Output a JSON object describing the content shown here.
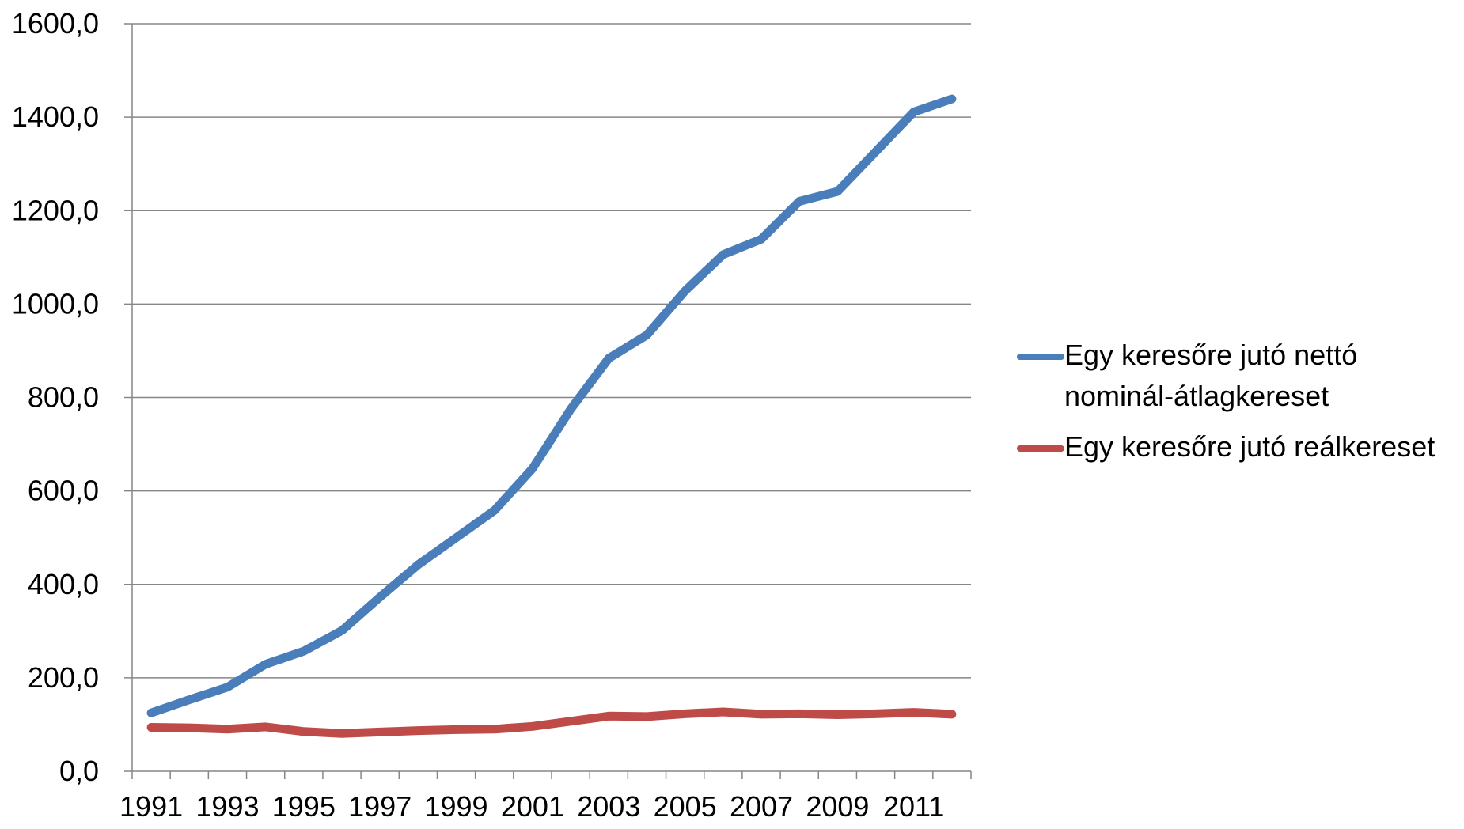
{
  "chart_data": {
    "type": "line",
    "title": "",
    "xlabel": "",
    "ylabel": "",
    "x": [
      1991,
      1992,
      1993,
      1994,
      1995,
      1996,
      1997,
      1998,
      1999,
      2000,
      2001,
      2002,
      2003,
      2004,
      2005,
      2006,
      2007,
      2008,
      2009,
      2010,
      2011,
      2012
    ],
    "x_tick_labels": [
      "1991",
      "1993",
      "1995",
      "1997",
      "1999",
      "2001",
      "2003",
      "2005",
      "2007",
      "2009",
      "2011"
    ],
    "y_tick_labels": [
      "0,0",
      "200,0",
      "400,0",
      "600,0",
      "800,0",
      "1000,0",
      "1200,0",
      "1400,0",
      "1600,0"
    ],
    "ylim": [
      0,
      1600
    ],
    "grid": "horizontal",
    "legend_position": "right",
    "series": [
      {
        "name": "Egy keresőre jutó nettó nominál-átlagkereset",
        "color": "#4A7EBB",
        "values": [
          125,
          153,
          180,
          229,
          257,
          301,
          373,
          442,
          500,
          558,
          648,
          775,
          884,
          934,
          1028,
          1106,
          1139,
          1220,
          1241,
          1326,
          1411,
          1439
        ]
      },
      {
        "name": "Egy keresőre jutó reálkereset",
        "color": "#BE4B48",
        "values": [
          94,
          93,
          90,
          95,
          85,
          81,
          84,
          87,
          89,
          90,
          96,
          107,
          118,
          117,
          123,
          127,
          122,
          123,
          121,
          123,
          126,
          122
        ]
      }
    ]
  }
}
